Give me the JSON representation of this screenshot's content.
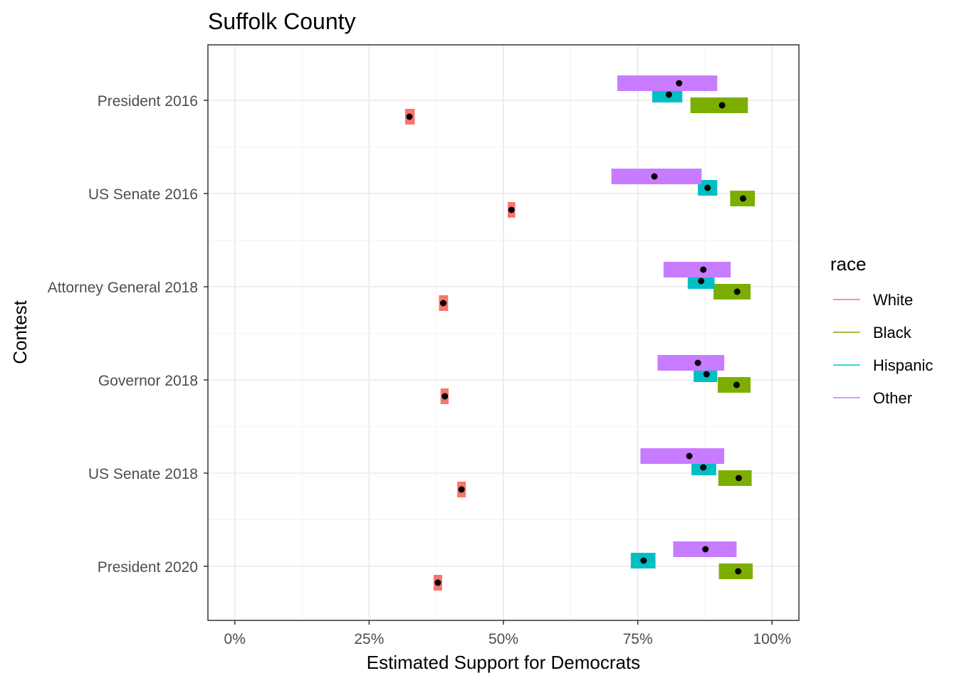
{
  "chart_data": {
    "type": "scatter",
    "title": "Suffolk County",
    "xlabel": "Estimated Support for Democrats",
    "ylabel": "Contest",
    "xlim": [
      -0.05,
      1.05
    ],
    "x_ticks": [
      {
        "value": 0,
        "label": "0%"
      },
      {
        "value": 0.25,
        "label": "25%"
      },
      {
        "value": 0.5,
        "label": "50%"
      },
      {
        "value": 0.75,
        "label": "75%"
      },
      {
        "value": 1,
        "label": "100%"
      }
    ],
    "categories": [
      "President 2016",
      "US Senate 2016",
      "Attorney General 2018",
      "Governor 2018",
      "US Senate 2018",
      "President 2020"
    ],
    "grid": true,
    "legend": {
      "title": "race",
      "position": "right"
    },
    "series": [
      {
        "name": "White",
        "color": "#F8766D",
        "points": [
          {
            "estimate": 0.325,
            "lower": 0.317,
            "upper": 0.335
          },
          {
            "estimate": 0.515,
            "lower": 0.508,
            "upper": 0.522
          },
          {
            "estimate": 0.388,
            "lower": 0.38,
            "upper": 0.397
          },
          {
            "estimate": 0.391,
            "lower": 0.383,
            "upper": 0.398
          },
          {
            "estimate": 0.422,
            "lower": 0.414,
            "upper": 0.43
          },
          {
            "estimate": 0.378,
            "lower": 0.37,
            "upper": 0.386
          }
        ]
      },
      {
        "name": "Black",
        "color": "#7CAE00",
        "points": [
          {
            "estimate": 0.907,
            "lower": 0.848,
            "upper": 0.955
          },
          {
            "estimate": 0.946,
            "lower": 0.922,
            "upper": 0.968
          },
          {
            "estimate": 0.935,
            "lower": 0.891,
            "upper": 0.96
          },
          {
            "estimate": 0.934,
            "lower": 0.899,
            "upper": 0.96
          },
          {
            "estimate": 0.938,
            "lower": 0.9,
            "upper": 0.962
          },
          {
            "estimate": 0.937,
            "lower": 0.901,
            "upper": 0.964
          }
        ]
      },
      {
        "name": "Hispanic",
        "color": "#00BFC4",
        "points": [
          {
            "estimate": 0.808,
            "lower": 0.777,
            "upper": 0.833
          },
          {
            "estimate": 0.88,
            "lower": 0.862,
            "upper": 0.898
          },
          {
            "estimate": 0.868,
            "lower": 0.843,
            "upper": 0.893
          },
          {
            "estimate": 0.878,
            "lower": 0.854,
            "upper": 0.898
          },
          {
            "estimate": 0.872,
            "lower": 0.85,
            "upper": 0.896
          },
          {
            "estimate": 0.761,
            "lower": 0.737,
            "upper": 0.783
          }
        ]
      },
      {
        "name": "Other",
        "color": "#C77CFF",
        "points": [
          {
            "estimate": 0.827,
            "lower": 0.712,
            "upper": 0.898
          },
          {
            "estimate": 0.781,
            "lower": 0.701,
            "upper": 0.869
          },
          {
            "estimate": 0.872,
            "lower": 0.798,
            "upper": 0.923
          },
          {
            "estimate": 0.862,
            "lower": 0.787,
            "upper": 0.911
          },
          {
            "estimate": 0.846,
            "lower": 0.755,
            "upper": 0.911
          },
          {
            "estimate": 0.876,
            "lower": 0.816,
            "upper": 0.934
          }
        ]
      }
    ]
  }
}
